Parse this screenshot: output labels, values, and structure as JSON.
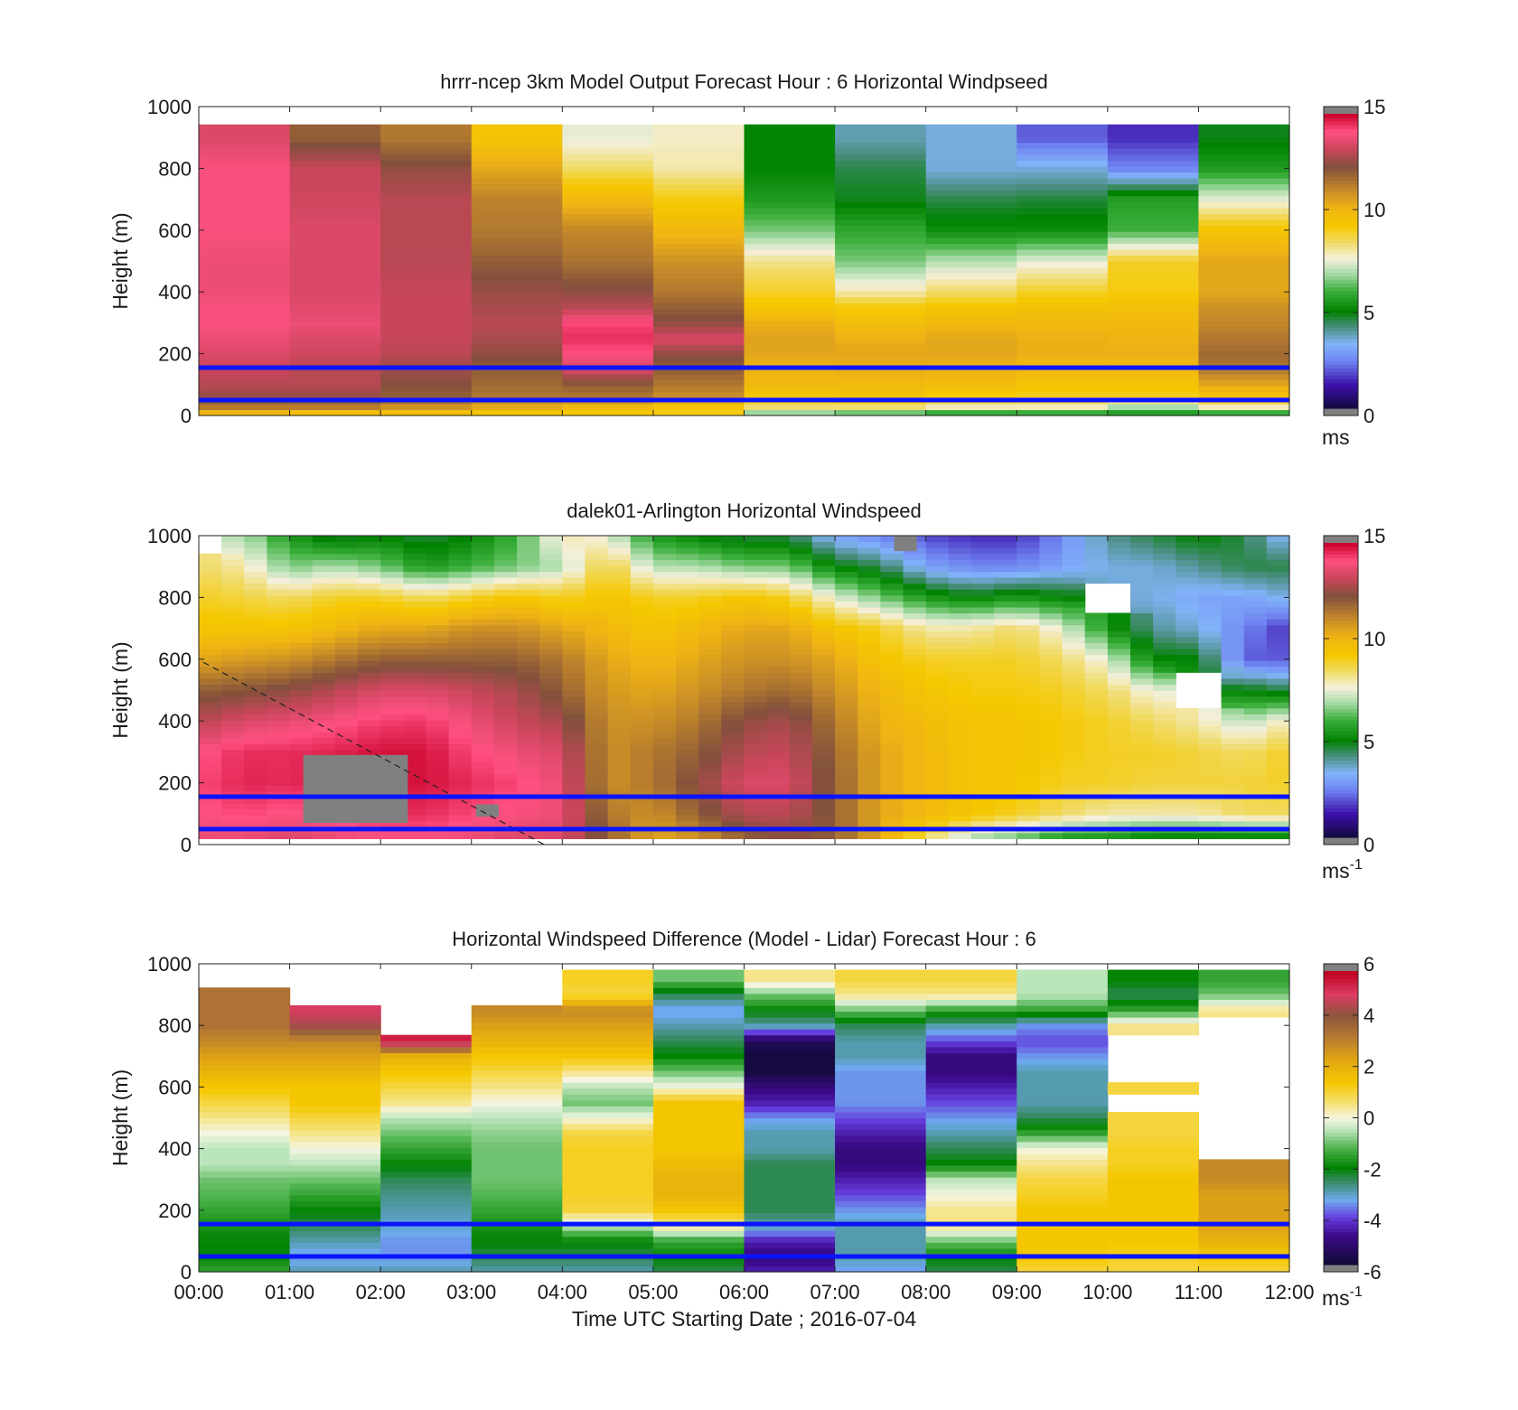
{
  "figure": {
    "x_ticks": [
      "00:00",
      "01:00",
      "02:00",
      "03:00",
      "04:00",
      "05:00",
      "06:00",
      "07:00",
      "08:00",
      "09:00",
      "10:00",
      "11:00",
      "12:00"
    ],
    "x_label": "Time UTC  Starting Date ; 2016-07-04",
    "y_label": "Height (m)",
    "y_ticks": [
      "0",
      "200",
      "400",
      "600",
      "800",
      "1000"
    ],
    "reference_lines_color": "#0a14ff",
    "missing_color": "#808080"
  },
  "chart_data": [
    {
      "type": "heatmap",
      "title": "hrrr-ncep 3km Model Output   Forecast Hour : 6 Horizontal Windpseed",
      "ylabel": "Height (m)",
      "xlim_hours": [
        0,
        12
      ],
      "ylim": [
        0,
        1000
      ],
      "colorbar": {
        "ticks": [
          "0",
          "5",
          "10",
          "15"
        ],
        "range": [
          0,
          15
        ],
        "unit": "ms",
        "unit_sup": ""
      },
      "reference_lines_m": [
        155,
        50
      ],
      "columns_hours": [
        0,
        1,
        2,
        3,
        4,
        5,
        6,
        7,
        8,
        9,
        10,
        11
      ],
      "levels_m": [
        0,
        30,
        60,
        100,
        150,
        200,
        250,
        300,
        350,
        400,
        500,
        600,
        700,
        800,
        900,
        1000
      ],
      "values": [
        [
          9.5,
          11.5,
          12.5,
          13.0,
          13.2,
          13.5,
          13.8,
          14.0,
          14.0,
          13.8,
          13.8,
          14.0,
          14.0,
          14.0,
          13.5
        ],
        [
          9.0,
          11.5,
          12.5,
          13.0,
          13.0,
          13.3,
          13.5,
          13.8,
          13.6,
          13.5,
          13.5,
          13.5,
          13.3,
          13.2,
          12.0
        ],
        [
          9.0,
          11.0,
          12.0,
          12.3,
          12.7,
          13.0,
          13.2,
          13.2,
          13.2,
          13.2,
          13.0,
          13.0,
          13.0,
          12.5,
          11.5
        ],
        [
          9.0,
          10.5,
          11.5,
          11.8,
          12.0,
          12.5,
          12.8,
          13.0,
          12.8,
          12.6,
          12.0,
          11.5,
          11.3,
          10.5,
          9.5
        ],
        [
          9.0,
          10.0,
          11.5,
          12.0,
          13.5,
          14.0,
          14.5,
          14.2,
          13.0,
          12.5,
          11.6,
          11.2,
          10.0,
          8.5,
          7.5
        ],
        [
          9.0,
          9.5,
          11.0,
          11.5,
          12.0,
          12.5,
          13.5,
          12.5,
          12.0,
          11.5,
          11.0,
          10.0,
          9.2,
          8.0,
          7.8
        ],
        [
          6.0,
          8.5,
          9.3,
          10.0,
          10.2,
          10.5,
          10.6,
          10.3,
          9.5,
          9.0,
          8.2,
          6.5,
          5.5,
          5.0,
          5.0
        ],
        [
          5.5,
          8.5,
          9.5,
          10.0,
          10.3,
          10.5,
          10.3,
          9.8,
          9.3,
          8.0,
          6.5,
          5.8,
          4.8,
          4.5,
          3.8
        ],
        [
          5.0,
          8.0,
          9.2,
          9.8,
          10.2,
          10.5,
          10.5,
          10.0,
          9.5,
          8.5,
          7.0,
          5.2,
          4.5,
          3.5,
          3.5
        ],
        [
          5.0,
          8.0,
          9.0,
          9.5,
          10.0,
          10.3,
          10.3,
          10.0,
          9.6,
          9.0,
          7.5,
          5.2,
          4.6,
          3.5,
          2.0
        ],
        [
          5.0,
          7.0,
          9.0,
          9.5,
          10.0,
          10.3,
          10.2,
          10.0,
          9.7,
          9.2,
          9.0,
          6.0,
          5.6,
          2.5,
          1.5
        ],
        [
          5.0,
          8.0,
          9.5,
          10.5,
          11.5,
          11.8,
          11.5,
          11.2,
          11.0,
          10.5,
          10.5,
          9.5,
          7.5,
          5.5,
          4.8
        ]
      ]
    },
    {
      "type": "heatmap",
      "title": "dalek01-Arlington  Horizontal Windspeed",
      "ylabel": "Height (m)",
      "xlim_hours": [
        0,
        12
      ],
      "ylim": [
        0,
        1000
      ],
      "colorbar": {
        "ticks": [
          "0",
          "5",
          "10",
          "15"
        ],
        "range": [
          0,
          15
        ],
        "unit": "ms",
        "unit_sup": "-1"
      },
      "reference_lines_m": [
        155,
        50
      ],
      "dashed_line": {
        "from": [
          0.05,
          590
        ],
        "to": [
          3.8,
          0
        ]
      },
      "missing_regions": [
        {
          "hours": [
            1.15,
            2.3
          ],
          "heights_m": [
            70,
            290
          ]
        },
        {
          "hours": [
            3.05,
            3.3
          ],
          "heights_m": [
            90,
            130
          ]
        },
        {
          "hours": [
            7.65,
            7.9
          ],
          "heights_m": [
            950,
            1000
          ]
        }
      ],
      "profile_times_hours": [
        0.0,
        0.5,
        1.0,
        1.5,
        2.0,
        2.5,
        3.0,
        3.5,
        4.0,
        4.5,
        5.0,
        5.5,
        6.0,
        6.5,
        7.0,
        7.5,
        8.0,
        8.5,
        9.0,
        9.5,
        10.0,
        10.5,
        11.0,
        11.5,
        12.0
      ],
      "levels_m": [
        25,
        100,
        200,
        300,
        400,
        500,
        600,
        700,
        800,
        900,
        1000
      ],
      "values": [
        [
          13.8,
          14.0,
          14.2,
          14.0,
          13.0,
          12.0,
          10.5,
          9.5,
          9.0,
          8.5,
          null
        ],
        [
          13.8,
          14.2,
          14.6,
          14.5,
          13.5,
          12.2,
          10.8,
          9.5,
          8.8,
          8.0,
          7.0
        ],
        [
          13.5,
          14.0,
          14.5,
          14.5,
          13.7,
          12.5,
          11.0,
          9.5,
          8.5,
          6.5,
          5.5
        ],
        [
          13.8,
          14.2,
          14.8,
          14.6,
          14.0,
          13.0,
          11.5,
          10.0,
          9.0,
          7.0,
          4.5
        ],
        [
          14.0,
          14.5,
          14.8,
          14.8,
          14.3,
          13.5,
          12.0,
          10.5,
          9.0,
          6.5,
          5.0
        ],
        [
          14.0,
          14.5,
          14.8,
          14.8,
          14.4,
          13.5,
          12.0,
          10.5,
          8.5,
          5.5,
          4.5
        ],
        [
          13.8,
          14.2,
          14.5,
          14.2,
          13.8,
          13.2,
          12.0,
          11.0,
          9.0,
          6.0,
          5.0
        ],
        [
          13.5,
          14.0,
          14.2,
          13.8,
          13.2,
          12.8,
          12.0,
          11.0,
          9.5,
          6.5,
          6.0
        ],
        [
          13.5,
          13.8,
          13.8,
          13.5,
          12.8,
          12.0,
          11.5,
          10.5,
          9.0,
          7.0,
          8.0
        ],
        [
          12.0,
          11.5,
          11.0,
          11.0,
          11.0,
          10.8,
          10.5,
          10.0,
          9.5,
          9.0,
          7.5
        ],
        [
          10.5,
          11.0,
          11.5,
          11.5,
          11.0,
          10.5,
          10.0,
          9.5,
          9.0,
          7.0,
          5.5
        ],
        [
          11.0,
          12.0,
          12.5,
          12.0,
          11.5,
          11.0,
          10.5,
          10.0,
          9.0,
          7.0,
          5.0
        ],
        [
          12.0,
          13.0,
          13.5,
          13.0,
          12.5,
          11.5,
          11.0,
          10.5,
          9.5,
          6.5,
          4.5
        ],
        [
          12.5,
          13.0,
          13.5,
          13.2,
          12.8,
          11.8,
          11.0,
          10.5,
          9.0,
          6.5,
          4.5
        ],
        [
          12.0,
          12.0,
          12.0,
          11.8,
          11.5,
          11.0,
          10.5,
          9.5,
          7.5,
          5.0,
          3.0
        ],
        [
          10.5,
          10.5,
          10.5,
          10.5,
          10.2,
          10.0,
          9.5,
          9.0,
          6.5,
          4.5,
          2.5
        ],
        [
          8.5,
          10.0,
          10.0,
          10.0,
          9.8,
          9.5,
          9.0,
          8.0,
          5.5,
          3.0,
          1.8
        ],
        [
          7.0,
          9.5,
          9.5,
          9.5,
          9.5,
          9.2,
          9.0,
          8.0,
          5.0,
          2.5,
          1.5
        ],
        [
          6.5,
          9.0,
          9.5,
          9.5,
          9.5,
          9.2,
          9.0,
          8.5,
          5.5,
          2.5,
          1.5
        ],
        [
          5.5,
          8.5,
          9.0,
          9.2,
          9.2,
          9.0,
          8.5,
          7.5,
          5.0,
          3.0,
          2.5
        ],
        [
          5.5,
          8.0,
          9.0,
          9.0,
          9.0,
          8.5,
          7.5,
          5.5,
          null,
          3.5,
          4.0
        ],
        [
          5.0,
          8.0,
          8.8,
          9.0,
          8.5,
          7.5,
          5.0,
          4.0,
          3.5,
          3.5,
          4.5
        ],
        [
          5.0,
          8.0,
          8.8,
          8.8,
          8.0,
          null,
          5.0,
          3.5,
          3.0,
          4.0,
          5.0
        ],
        [
          5.0,
          8.5,
          8.8,
          8.5,
          7.0,
          5.0,
          2.0,
          2.5,
          3.0,
          4.5,
          4.5
        ],
        [
          5.0,
          8.5,
          9.0,
          9.0,
          8.0,
          4.5,
          2.0,
          1.5,
          3.5,
          4.5,
          3.0
        ]
      ]
    },
    {
      "type": "heatmap",
      "title": "Horizontal Windspeed Difference (Model - Lidar) Forecast Hour : 6",
      "ylabel": "Height (m)",
      "xlabel": "Time UTC  Starting Date ; 2016-07-04",
      "xlim_hours": [
        0,
        12
      ],
      "ylim": [
        0,
        1000
      ],
      "colorbar": {
        "ticks": [
          "-6",
          "-4",
          "-2",
          "0",
          "2",
          "4",
          "6"
        ],
        "range": [
          -6,
          6
        ],
        "unit": "ms",
        "unit_sup": "-1"
      },
      "reference_lines_m": [
        155,
        50
      ],
      "columns_hours": [
        0,
        1,
        2,
        3,
        4,
        5,
        6,
        7,
        8,
        9,
        10,
        11
      ],
      "levels_m": [
        0,
        50,
        100,
        150,
        200,
        250,
        300,
        350,
        400,
        450,
        500,
        550,
        600,
        650,
        700,
        750,
        800,
        850,
        900,
        950,
        1000
      ],
      "values": [
        [
          -1.5,
          -2.0,
          -2.0,
          -1.8,
          -1.5,
          -1.2,
          -1.0,
          -0.5,
          -0.5,
          0.0,
          0.5,
          1.0,
          1.5,
          2.0,
          2.5,
          3.0,
          3.5,
          3.5,
          3.5,
          null
        ],
        [
          -3.0,
          -3.5,
          -3.0,
          -2.5,
          -2.0,
          -1.5,
          -1.0,
          -0.5,
          0.0,
          0.5,
          1.0,
          1.5,
          1.5,
          2.0,
          2.5,
          3.0,
          4.5,
          5.0,
          null,
          null
        ],
        [
          -3.0,
          -3.5,
          -3.5,
          -3.2,
          -3.0,
          -2.8,
          -2.5,
          -2.0,
          -1.5,
          -1.0,
          -0.5,
          0.5,
          1.0,
          1.5,
          2.0,
          5.5,
          null,
          null,
          null,
          null
        ],
        [
          -3.0,
          -2.5,
          -2.0,
          -1.8,
          -1.5,
          -1.2,
          -1.0,
          -1.0,
          -1.0,
          -0.8,
          -0.5,
          0.0,
          0.5,
          1.0,
          1.5,
          2.0,
          2.5,
          3.0,
          null,
          null
        ],
        [
          -3.0,
          -2.5,
          -2.0,
          -0.5,
          1.0,
          1.2,
          1.2,
          1.2,
          1.2,
          1.0,
          0.0,
          -1.0,
          -0.5,
          0.5,
          1.5,
          2.0,
          2.5,
          3.0,
          1.0,
          1.2
        ],
        [
          -2.5,
          -2.0,
          -1.5,
          0.5,
          1.5,
          2.0,
          2.0,
          1.8,
          1.5,
          1.5,
          1.5,
          1.5,
          0.0,
          -1.0,
          -2.0,
          -2.5,
          -3.0,
          -3.5,
          -2.5,
          -1.0
        ],
        [
          -4.5,
          -5.0,
          -4.5,
          -3.0,
          -2.5,
          -2.5,
          -2.5,
          -2.5,
          -3.0,
          -3.0,
          -3.5,
          -4.5,
          -5.0,
          -5.8,
          -5.8,
          -5.5,
          -3.0,
          -2.0,
          -1.0,
          0.5
        ],
        [
          -3.5,
          -3.0,
          -3.0,
          -3.0,
          -3.5,
          -4.0,
          -4.5,
          -5.0,
          -5.0,
          -4.5,
          -4.0,
          -3.5,
          -3.5,
          -3.5,
          -3.0,
          -3.0,
          -2.5,
          -1.0,
          0.5,
          1.0
        ],
        [
          -2.5,
          -2.0,
          -1.0,
          0.5,
          0.5,
          0.0,
          -0.5,
          -2.0,
          -2.5,
          -3.0,
          -3.5,
          -4.0,
          -4.5,
          -5.0,
          -5.0,
          -4.0,
          -3.0,
          -1.5,
          0.5,
          1.0
        ],
        [
          1.0,
          1.5,
          1.5,
          1.5,
          1.5,
          1.2,
          1.0,
          0.5,
          0.0,
          -1.5,
          -2.5,
          -3.0,
          -3.0,
          -3.0,
          -3.5,
          -4.0,
          -3.5,
          -1.5,
          -0.5,
          -0.5
        ],
        [
          1.0,
          1.2,
          1.5,
          1.5,
          1.5,
          1.5,
          1.5,
          1.2,
          1.2,
          1.0,
          1.0,
          null,
          1.0,
          null,
          null,
          null,
          0.5,
          -1.5,
          -2.5,
          -2.0
        ],
        [
          1.0,
          1.5,
          2.0,
          2.5,
          2.5,
          2.5,
          3.0,
          3.0,
          null,
          null,
          null,
          null,
          null,
          null,
          null,
          null,
          null,
          0.5,
          -1.0,
          -1.5
        ]
      ]
    }
  ]
}
